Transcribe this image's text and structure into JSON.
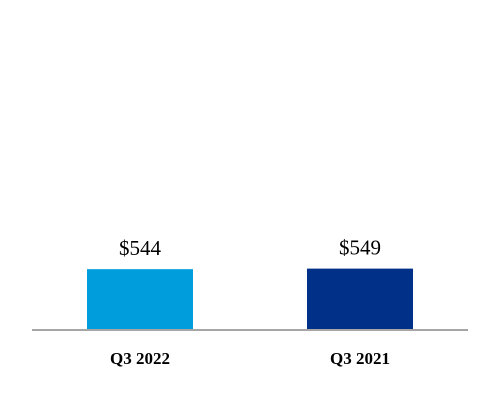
{
  "chart_data": {
    "type": "bar",
    "categories": [
      "Q3 2022",
      "Q3 2021"
    ],
    "values": [
      544,
      549
    ],
    "value_labels": [
      "$544",
      "$549"
    ],
    "colors": [
      "#009ddc",
      "#003087"
    ]
  }
}
